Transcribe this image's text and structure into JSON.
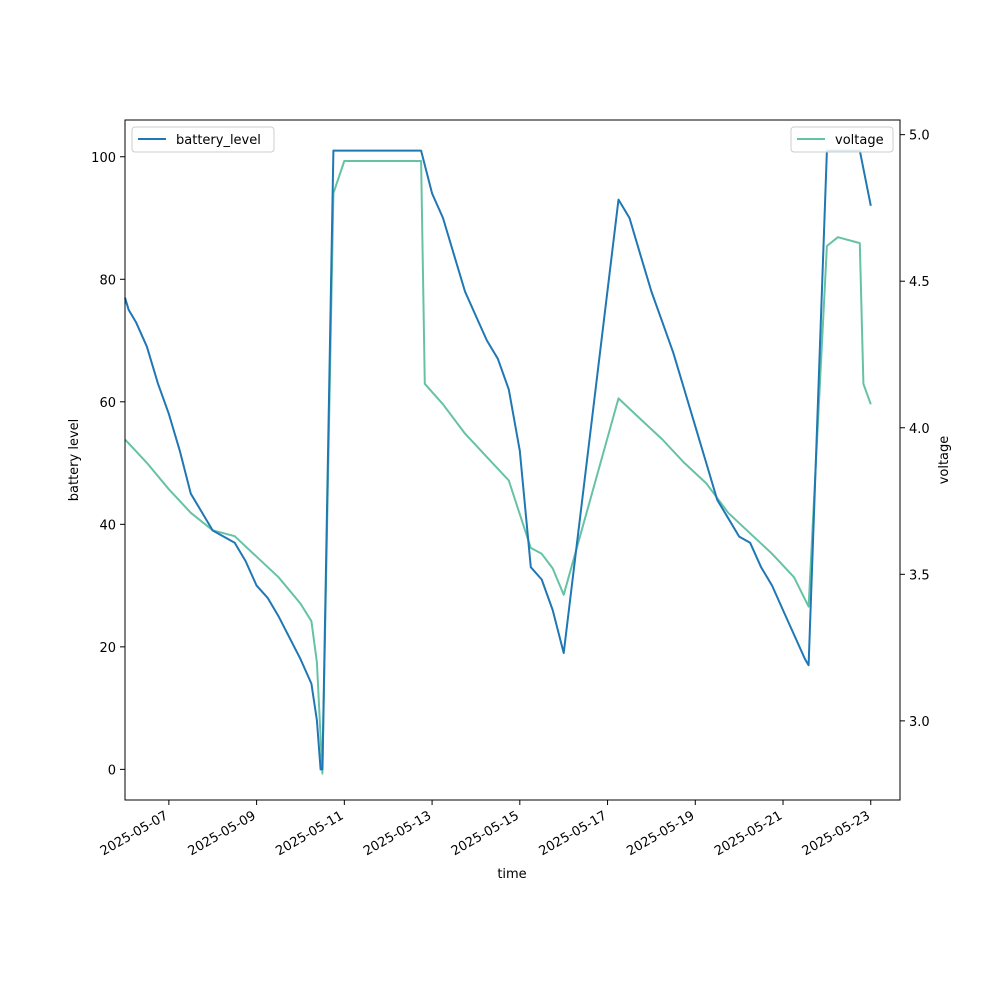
{
  "chart_data": {
    "type": "line",
    "xlabel": "time",
    "ylabel": "battery level",
    "y2label": "voltage",
    "xlim": [
      "2025-05-06T00:00",
      "2025-05-23T16:00"
    ],
    "ylim": [
      -5,
      106
    ],
    "y2lim": [
      2.73,
      5.05
    ],
    "x_ticks": [
      "2025-05-07",
      "2025-05-09",
      "2025-05-11",
      "2025-05-13",
      "2025-05-15",
      "2025-05-17",
      "2025-05-19",
      "2025-05-21",
      "2025-05-23"
    ],
    "y_ticks": [
      0,
      20,
      40,
      60,
      80,
      100
    ],
    "y2_ticks": [
      "3.0",
      "3.5",
      "4.0",
      "4.5",
      "5.0"
    ],
    "legend_left": {
      "position": "upper-left",
      "label": "battery_level"
    },
    "legend_right": {
      "position": "upper-right",
      "label": "voltage"
    },
    "colors": {
      "battery_level": "#1f77b4",
      "voltage": "#66c2a5"
    },
    "series": [
      {
        "name": "battery_level",
        "axis": "left",
        "points": [
          [
            "2025-05-06T00:00",
            77
          ],
          [
            "2025-05-06T02:00",
            75
          ],
          [
            "2025-05-06T06:00",
            73
          ],
          [
            "2025-05-06T12:00",
            69
          ],
          [
            "2025-05-06T18:00",
            63
          ],
          [
            "2025-05-07T00:00",
            58
          ],
          [
            "2025-05-07T06:00",
            52
          ],
          [
            "2025-05-07T12:00",
            45
          ],
          [
            "2025-05-07T18:00",
            42
          ],
          [
            "2025-05-08T00:00",
            39
          ],
          [
            "2025-05-08T06:00",
            38
          ],
          [
            "2025-05-08T12:00",
            37
          ],
          [
            "2025-05-08T18:00",
            34
          ],
          [
            "2025-05-09T00:00",
            30
          ],
          [
            "2025-05-09T06:00",
            28
          ],
          [
            "2025-05-09T12:00",
            25
          ],
          [
            "2025-05-10T00:00",
            18
          ],
          [
            "2025-05-10T06:00",
            14
          ],
          [
            "2025-05-10T09:00",
            8
          ],
          [
            "2025-05-10T11:00",
            0
          ],
          [
            "2025-05-10T12:00",
            0
          ],
          [
            "2025-05-10T18:00",
            101
          ],
          [
            "2025-05-12T18:00",
            101
          ],
          [
            "2025-05-13T00:00",
            94
          ],
          [
            "2025-05-13T06:00",
            90
          ],
          [
            "2025-05-13T12:00",
            84
          ],
          [
            "2025-05-13T18:00",
            78
          ],
          [
            "2025-05-14T00:00",
            74
          ],
          [
            "2025-05-14T06:00",
            70
          ],
          [
            "2025-05-14T12:00",
            67
          ],
          [
            "2025-05-14T18:00",
            62
          ],
          [
            "2025-05-15T00:00",
            52
          ],
          [
            "2025-05-15T06:00",
            33
          ],
          [
            "2025-05-15T12:00",
            31
          ],
          [
            "2025-05-15T18:00",
            26
          ],
          [
            "2025-05-16T00:00",
            19
          ],
          [
            "2025-05-17T06:00",
            93
          ],
          [
            "2025-05-17T12:00",
            90
          ],
          [
            "2025-05-17T18:00",
            84
          ],
          [
            "2025-05-18T00:00",
            78
          ],
          [
            "2025-05-18T06:00",
            73
          ],
          [
            "2025-05-18T12:00",
            68
          ],
          [
            "2025-05-18T18:00",
            62
          ],
          [
            "2025-05-19T00:00",
            56
          ],
          [
            "2025-05-19T06:00",
            50
          ],
          [
            "2025-05-19T12:00",
            44
          ],
          [
            "2025-05-19T18:00",
            41
          ],
          [
            "2025-05-20T00:00",
            38
          ],
          [
            "2025-05-20T06:00",
            37
          ],
          [
            "2025-05-20T12:00",
            33
          ],
          [
            "2025-05-20T18:00",
            30
          ],
          [
            "2025-05-21T00:00",
            26
          ],
          [
            "2025-05-21T06:00",
            22
          ],
          [
            "2025-05-21T12:00",
            18
          ],
          [
            "2025-05-21T14:00",
            17
          ],
          [
            "2025-05-22T00:00",
            101
          ],
          [
            "2025-05-22T18:00",
            101
          ],
          [
            "2025-05-23T00:00",
            92
          ]
        ]
      },
      {
        "name": "voltage",
        "axis": "right",
        "points": [
          [
            "2025-05-06T00:00",
            3.96
          ],
          [
            "2025-05-06T06:00",
            3.92
          ],
          [
            "2025-05-06T12:00",
            3.88
          ],
          [
            "2025-05-07T00:00",
            3.79
          ],
          [
            "2025-05-07T12:00",
            3.71
          ],
          [
            "2025-05-08T00:00",
            3.65
          ],
          [
            "2025-05-08T12:00",
            3.63
          ],
          [
            "2025-05-09T00:00",
            3.56
          ],
          [
            "2025-05-09T12:00",
            3.49
          ],
          [
            "2025-05-10T00:00",
            3.4
          ],
          [
            "2025-05-10T06:00",
            3.34
          ],
          [
            "2025-05-10T09:00",
            3.2
          ],
          [
            "2025-05-10T12:00",
            2.82
          ],
          [
            "2025-05-10T18:00",
            4.8
          ],
          [
            "2025-05-11T00:00",
            4.91
          ],
          [
            "2025-05-12T00:00",
            4.91
          ],
          [
            "2025-05-12T18:00",
            4.91
          ],
          [
            "2025-05-12T20:00",
            4.15
          ],
          [
            "2025-05-13T06:00",
            4.08
          ],
          [
            "2025-05-13T18:00",
            3.98
          ],
          [
            "2025-05-14T06:00",
            3.9
          ],
          [
            "2025-05-14T18:00",
            3.82
          ],
          [
            "2025-05-15T06:00",
            3.59
          ],
          [
            "2025-05-15T12:00",
            3.57
          ],
          [
            "2025-05-15T18:00",
            3.52
          ],
          [
            "2025-05-16T00:00",
            3.43
          ],
          [
            "2025-05-17T06:00",
            4.1
          ],
          [
            "2025-05-17T18:00",
            4.03
          ],
          [
            "2025-05-18T06:00",
            3.96
          ],
          [
            "2025-05-18T18:00",
            3.88
          ],
          [
            "2025-05-19T06:00",
            3.81
          ],
          [
            "2025-05-19T18:00",
            3.71
          ],
          [
            "2025-05-20T06:00",
            3.64
          ],
          [
            "2025-05-20T18:00",
            3.57
          ],
          [
            "2025-05-21T06:00",
            3.49
          ],
          [
            "2025-05-21T14:00",
            3.39
          ],
          [
            "2025-05-22T00:00",
            4.62
          ],
          [
            "2025-05-22T06:00",
            4.65
          ],
          [
            "2025-05-22T18:00",
            4.63
          ],
          [
            "2025-05-22T20:00",
            4.15
          ],
          [
            "2025-05-23T00:00",
            4.08
          ]
        ]
      }
    ]
  }
}
